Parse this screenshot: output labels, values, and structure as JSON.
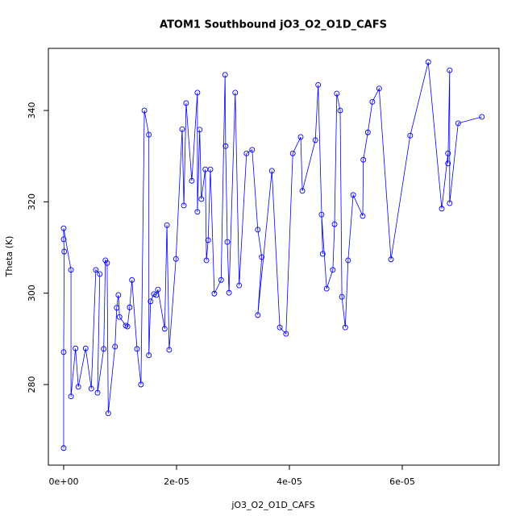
{
  "chart_data": {
    "type": "line",
    "title": "ATOM1 Southbound jO3_O2_O1D_CAFS",
    "x_label": "jO3_O2_O1D_CAFS",
    "y_label": "Theta (K)",
    "color": "#0000ff",
    "markers": true,
    "x": [
      0,
      0,
      1e-07,
      0,
      0,
      1.3e-06,
      1.3e-06,
      2.1e-06,
      2.6e-06,
      3.9e-06,
      4.9e-06,
      5.7e-06,
      6.4e-06,
      6e-06,
      7.1e-06,
      7.4e-06,
      7.7e-06,
      7.9e-06,
      9.1e-06,
      9.4e-06,
      9.7e-06,
      9.9e-06,
      1.1e-05,
      1.13e-05,
      1.17e-05,
      1.21e-05,
      1.3e-05,
      1.37e-05,
      1.43e-05,
      1.51e-05,
      1.51e-05,
      1.54e-05,
      1.6e-05,
      1.64e-05,
      1.67e-05,
      1.79e-05,
      1.83e-05,
      1.87e-05,
      1.99e-05,
      2.1e-05,
      2.13e-05,
      2.17e-05,
      2.27e-05,
      2.37e-05,
      2.37e-05,
      2.41e-05,
      2.44e-05,
      2.51e-05,
      2.53e-05,
      2.56e-05,
      2.6e-05,
      2.67e-05,
      2.79e-05,
      2.86e-05,
      2.87e-05,
      2.9e-05,
      2.93e-05,
      3.04e-05,
      3.11e-05,
      3.24e-05,
      3.34e-05,
      3.44e-05,
      3.51e-05,
      3.44e-05,
      3.69e-05,
      3.83e-05,
      3.94e-05,
      4.06e-05,
      4.2e-05,
      4.23e-05,
      4.46e-05,
      4.51e-05,
      4.59e-05,
      4.57e-05,
      4.66e-05,
      4.77e-05,
      4.8e-05,
      4.84e-05,
      4.9e-05,
      4.93e-05,
      4.99e-05,
      5.04e-05,
      5.13e-05,
      5.3e-05,
      5.31e-05,
      5.39e-05,
      5.47e-05,
      5.59e-05,
      5.8e-05,
      6.14e-05,
      6.46e-05,
      6.7e-05,
      6.81e-05,
      6.81e-05,
      6.84e-05,
      6.84e-05,
      6.99e-05,
      7.41e-05
    ],
    "values": [
      266.1,
      287.1,
      309.1,
      311.8,
      314.2,
      305.1,
      277.4,
      287.9,
      279.5,
      287.9,
      279.1,
      305.1,
      304.2,
      278.2,
      287.8,
      307.2,
      306.6,
      273.7,
      288.3,
      296.8,
      299.6,
      294.8,
      292.9,
      292.7,
      296.9,
      302.9,
      287.8,
      280,
      340,
      334.7,
      286.4,
      298.2,
      299.8,
      299.6,
      300.8,
      292.2,
      314.9,
      287.6,
      307.5,
      335.9,
      319.2,
      341.6,
      324.6,
      343.9,
      317.8,
      335.8,
      320.6,
      327.1,
      307.2,
      311.6,
      327.1,
      299.9,
      302.9,
      347.8,
      332.2,
      311.2,
      300.1,
      343.9,
      301.7,
      330.6,
      331.4,
      313.9,
      307.9,
      295.2,
      326.8,
      292.5,
      291.1,
      330.6,
      334.2,
      322.4,
      333.5,
      345.6,
      308.6,
      317.2,
      301,
      305.1,
      315.1,
      343.7,
      340,
      299.2,
      292.5,
      307.2,
      321.5,
      316.9,
      329.2,
      335.2,
      341.9,
      344.8,
      307.4,
      334.5,
      350.6,
      318.5,
      330.6,
      328.4,
      348.8,
      319.7,
      337.2,
      338.6
    ],
    "xlim": [
      -2.71e-06,
      7.714e-05
    ],
    "ylim": [
      262.35,
      353.6
    ],
    "xticks": [
      {
        "value": 0,
        "label": "0e+00"
      },
      {
        "value": 2e-05,
        "label": "2e-05"
      },
      {
        "value": 4e-05,
        "label": "4e-05"
      },
      {
        "value": 6e-05,
        "label": "6e-05"
      }
    ],
    "yticks": [
      280,
      300,
      320,
      340
    ]
  }
}
